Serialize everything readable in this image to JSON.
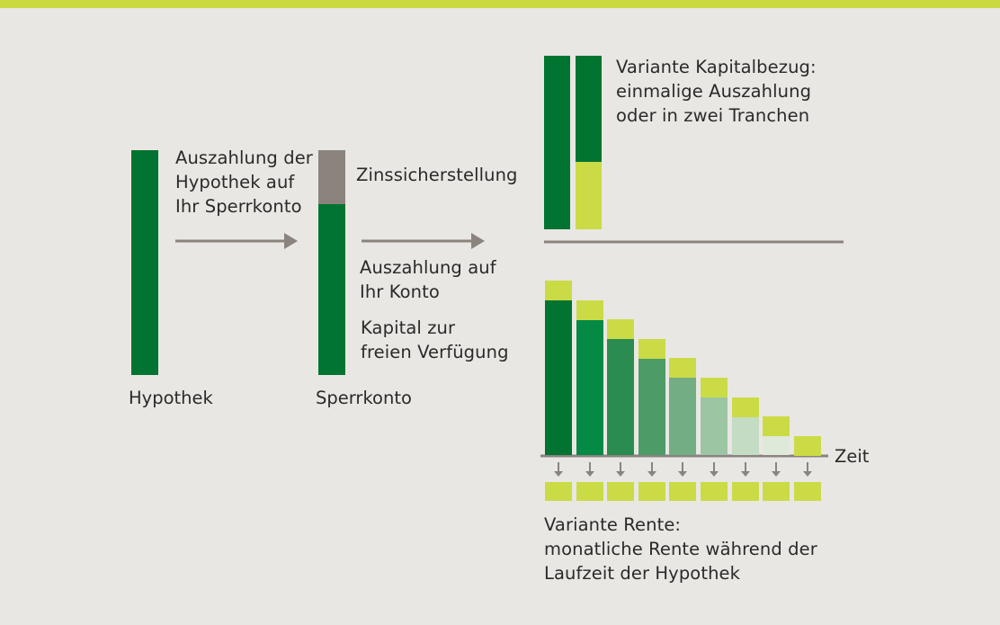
{
  "colors": {
    "background": "#e9e7e3",
    "accent_lime": "#cbdb46",
    "dark_green": "#027431",
    "reserve_grey": "#8a837e",
    "arrow_grey": "#8a837e"
  },
  "left": {
    "hypothek_label": "Hypothek",
    "arrow1_text": [
      "Auszahlung der",
      "Hypothek auf",
      "Ihr Sperrkonto"
    ],
    "sperrkonto_label": "Sperrkonto",
    "reserve_label": "Zinssicherstellung",
    "payout_text": [
      "Auszahlung auf",
      "Ihr Konto"
    ],
    "capital_text": [
      "Kapital zur",
      "freien Verfügung"
    ]
  },
  "capital_variant": {
    "text": [
      "Variante Kapitalbezug:",
      "einmalige Auszahlung",
      "oder in zwei Tranchen"
    ]
  },
  "pension_variant": {
    "time_label": "Zeit",
    "text": [
      "Variante Rente:",
      "monatliche Rente während der",
      "Laufzeit der Hypothek"
    ],
    "step_count": 9,
    "step_colors": [
      "#027431",
      "#058a45",
      "#2a8c50",
      "#4d9b66",
      "#73ad84",
      "#9cc5a3",
      "#c3dcc3",
      "#dfe9d9",
      "#e9e7e3"
    ]
  }
}
